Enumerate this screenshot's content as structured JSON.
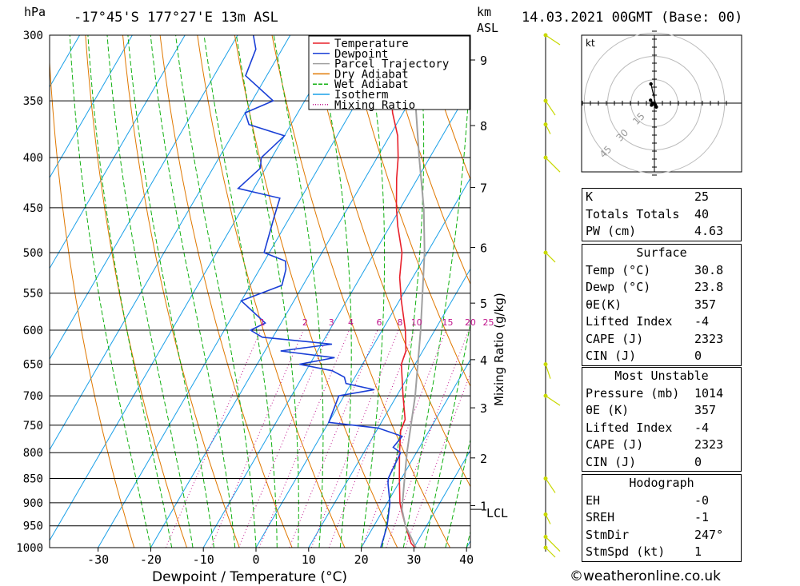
{
  "header": {
    "pressure_unit": "hPa",
    "location": "-17°45'S  177°27'E  13m  ASL",
    "height_unit": "km",
    "height_unit_2": "ASL",
    "datetime": "14.03.2021  00GMT  (Base: 00)"
  },
  "legend": [
    {
      "label": "Temperature",
      "color": "#e8202a"
    },
    {
      "label": "Dewpoint",
      "color": "#1a3fd6"
    },
    {
      "label": "Parcel Trajectory",
      "color": "#a0a0a0"
    },
    {
      "label": "Dry Adiabat",
      "color": "#e07800"
    },
    {
      "label": "Wet Adiabat",
      "color": "#10b010"
    },
    {
      "label": "Isotherm",
      "color": "#1aa0e8"
    },
    {
      "label": "Mixing Ratio",
      "color": "#c0138c"
    }
  ],
  "hodograph": {
    "unit_label": "kt",
    "ring_labels": [
      "15",
      "30",
      "45"
    ]
  },
  "indices": {
    "k": {
      "label": "K",
      "value": "25"
    },
    "tt": {
      "label": "Totals Totals",
      "value": "40"
    },
    "pw": {
      "label": "PW (cm)",
      "value": "4.63"
    }
  },
  "surface": {
    "title": "Surface",
    "temp": {
      "label": "Temp (°C)",
      "value": "30.8"
    },
    "dewp": {
      "label": "Dewp (°C)",
      "value": "23.8"
    },
    "theta_e": {
      "label": "θE(K)",
      "value": "357"
    },
    "li": {
      "label": "Lifted Index",
      "value": "-4"
    },
    "cape": {
      "label": "CAPE (J)",
      "value": "2323"
    },
    "cin": {
      "label": "CIN (J)",
      "value": "0"
    }
  },
  "most_unstable": {
    "title": "Most Unstable",
    "pressure": {
      "label": "Pressure (mb)",
      "value": "1014"
    },
    "theta_e": {
      "label": "θE (K)",
      "value": "357"
    },
    "li": {
      "label": "Lifted Index",
      "value": "-4"
    },
    "cape": {
      "label": "CAPE (J)",
      "value": "2323"
    },
    "cin": {
      "label": "CIN (J)",
      "value": "0"
    }
  },
  "hodo_table": {
    "title": "Hodograph",
    "eh": {
      "label": "EH",
      "value": "-0"
    },
    "sreh": {
      "label": "SREH",
      "value": "-1"
    },
    "stmdir": {
      "label": "StmDir",
      "value": "247°"
    },
    "stmspd": {
      "label": "StmSpd (kt)",
      "value": "1"
    }
  },
  "credit": "©weatheronline.co.uk",
  "chart_data": {
    "type": "line",
    "title": "",
    "xlabel": "Dewpoint / Temperature (°C)",
    "ylabel": "hPa",
    "y2label": "Mixing Ratio (g/kg)",
    "xlim": [
      -40,
      40
    ],
    "ylim": [
      1000,
      300
    ],
    "x_ticks": [
      -30,
      -20,
      -10,
      0,
      10,
      20,
      30,
      40
    ],
    "y_ticks": [
      300,
      350,
      400,
      450,
      500,
      550,
      600,
      650,
      700,
      750,
      800,
      850,
      900,
      950,
      1000
    ],
    "km_ticks": [
      {
        "km": "9",
        "p": 318
      },
      {
        "km": "8",
        "p": 371
      },
      {
        "km": "7",
        "p": 429
      },
      {
        "km": "6",
        "p": 494
      },
      {
        "km": "5",
        "p": 563
      },
      {
        "km": "4",
        "p": 643
      },
      {
        "km": "3",
        "p": 720
      },
      {
        "km": "2",
        "p": 810
      },
      {
        "km": "1",
        "p": 906
      }
    ],
    "lcl_label": "LCL",
    "lcl_p": 914,
    "mixing_ratio_labels": [
      "1",
      "2",
      "3",
      "4",
      "6",
      "8",
      "10",
      "15",
      "20",
      "25"
    ],
    "mixing_ratios": [
      1,
      2,
      3,
      4,
      6,
      8,
      10,
      15,
      20,
      25
    ],
    "series": [
      {
        "name": "Temperature",
        "color": "#e8202a",
        "points": [
          [
            1005,
            30.8
          ],
          [
            990,
            29
          ],
          [
            950,
            26
          ],
          [
            920,
            23.8
          ],
          [
            900,
            22.4
          ],
          [
            850,
            19.6
          ],
          [
            800,
            16.8
          ],
          [
            760,
            14.6
          ],
          [
            740,
            14.2
          ],
          [
            700,
            11.2
          ],
          [
            650,
            7.4
          ],
          [
            630,
            6.8
          ],
          [
            600,
            4.4
          ],
          [
            560,
            0.4
          ],
          [
            530,
            -2.5
          ],
          [
            500,
            -4.8
          ],
          [
            470,
            -8.5
          ],
          [
            450,
            -10.8
          ],
          [
            420,
            -14
          ],
          [
            400,
            -16
          ],
          [
            380,
            -18.5
          ],
          [
            360,
            -22
          ],
          [
            340,
            -25
          ],
          [
            320,
            -29
          ],
          [
            300,
            -32.5
          ]
        ]
      },
      {
        "name": "Dewpoint",
        "color": "#1a3fd6",
        "points": [
          [
            1005,
            23.8
          ],
          [
            970,
            23
          ],
          [
            950,
            22.5
          ],
          [
            900,
            20.5
          ],
          [
            860,
            18
          ],
          [
            850,
            17.5
          ],
          [
            800,
            17
          ],
          [
            790,
            15
          ],
          [
            770,
            15.5
          ],
          [
            755,
            10
          ],
          [
            745,
            0
          ],
          [
            700,
            -1
          ],
          [
            690,
            5
          ],
          [
            680,
            -1
          ],
          [
            670,
            -2
          ],
          [
            660,
            -5
          ],
          [
            650,
            -12
          ],
          [
            640,
            -6
          ],
          [
            630,
            -17
          ],
          [
            620,
            -8
          ],
          [
            610,
            -22
          ],
          [
            600,
            -25
          ],
          [
            590,
            -23
          ],
          [
            560,
            -30
          ],
          [
            540,
            -24
          ],
          [
            520,
            -25
          ],
          [
            510,
            -26
          ],
          [
            500,
            -31
          ],
          [
            460,
            -33
          ],
          [
            440,
            -34
          ],
          [
            430,
            -43
          ],
          [
            410,
            -41
          ],
          [
            400,
            -42
          ],
          [
            380,
            -40
          ],
          [
            370,
            -48
          ],
          [
            360,
            -50
          ],
          [
            350,
            -46
          ],
          [
            330,
            -54
          ],
          [
            310,
            -55
          ],
          [
            300,
            -57
          ]
        ]
      },
      {
        "name": "Parcel Trajectory",
        "color": "#a0a0a0",
        "points": [
          [
            1005,
            30.8
          ],
          [
            950,
            26
          ],
          [
            914,
            23.5
          ],
          [
            850,
            20.6
          ],
          [
            800,
            18.2
          ],
          [
            700,
            13.5
          ],
          [
            600,
            7.3
          ],
          [
            500,
            -0.5
          ],
          [
            450,
            -5.6
          ],
          [
            400,
            -12
          ],
          [
            350,
            -19
          ],
          [
            300,
            -27
          ]
        ]
      }
    ],
    "hodograph_points_kt": [
      [
        -2,
        1.5
      ],
      [
        -1,
        0
      ],
      [
        -1.5,
        -1
      ],
      [
        0.5,
        -1
      ],
      [
        1,
        -2
      ],
      [
        -1.8,
        10
      ]
    ],
    "wind_barbs_p": [
      300,
      350,
      370,
      400,
      500,
      650,
      700,
      850,
      925,
      975,
      1000
    ]
  }
}
